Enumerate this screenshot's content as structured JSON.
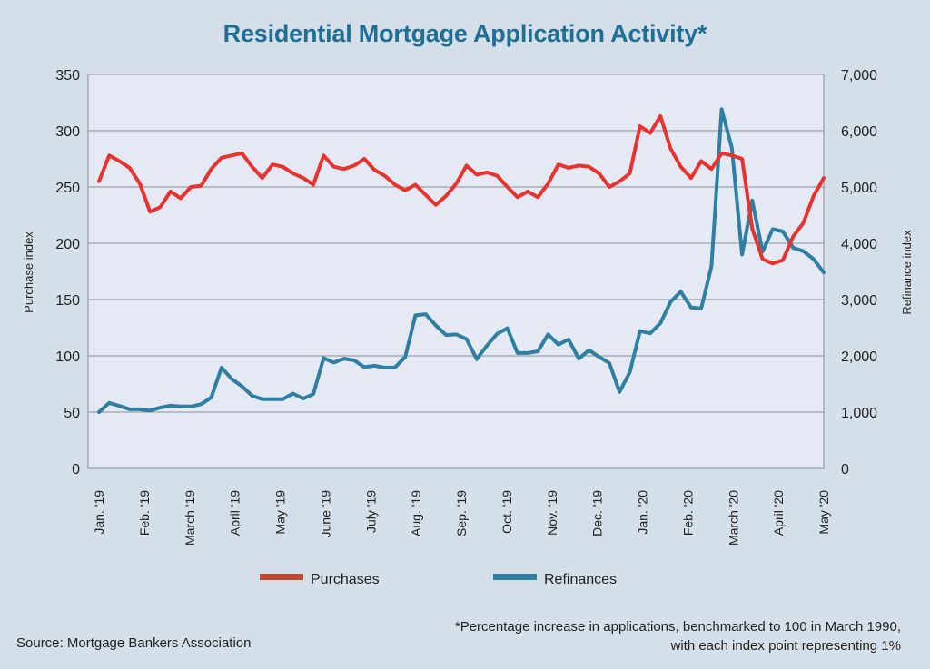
{
  "title": "Residential Mortgage Application Activity*",
  "source": "Source: Mortgage Bankers Association",
  "footnote": {
    "line1": "*Percentage increase in applications, benchmarked to 100 in March 1990,",
    "line2": "with each index point representing 1%"
  },
  "colors": {
    "background": "#d5dfe9",
    "plot": "#e4e9f4",
    "purchases": "#e8322e",
    "refinances": "#2e7fa2",
    "title": "#1f6f94",
    "grid": "#8a8f96"
  },
  "chart_data": {
    "type": "line",
    "ylabel_left": "Purchase index",
    "ylabel_right": "Refinance index",
    "ylim_left": [
      0,
      350
    ],
    "ylim_right": [
      0,
      7000
    ],
    "yticks_left": [
      "0",
      "50",
      "100",
      "150",
      "200",
      "250",
      "300",
      "350"
    ],
    "yticks_right": [
      "0",
      "1,000",
      "2,000",
      "3,000",
      "4,000",
      "5,000",
      "6,000",
      "7,000"
    ],
    "xticks": [
      "Jan. '19",
      "Feb. '19",
      "March '19",
      "April '19",
      "May '19",
      "June '19",
      "July '19",
      "Aug. '19",
      "Sep. '19",
      "Oct. '19",
      "Nov. '19",
      "Dec. '19",
      "Jan. '20",
      "Feb. '20",
      "March '20",
      "April '20",
      "May '20"
    ],
    "grid": true,
    "legend_position": "bottom",
    "series": [
      {
        "name": "Purchases",
        "axis": "left",
        "values": [
          255,
          278,
          273,
          267,
          253,
          228,
          232,
          246,
          240,
          250,
          251,
          266,
          276,
          278,
          280,
          268,
          258,
          270,
          268,
          262,
          258,
          252,
          278,
          268,
          266,
          269,
          275,
          265,
          260,
          252,
          247,
          252,
          243,
          234,
          242,
          253,
          269,
          261,
          263,
          260,
          250,
          241,
          246,
          241,
          253,
          270,
          267,
          269,
          268,
          262,
          250,
          255,
          262,
          304,
          298,
          313,
          284,
          268,
          258,
          273,
          266,
          280,
          278,
          275,
          213,
          186,
          182,
          185,
          206,
          218,
          242,
          258
        ]
      },
      {
        "name": "Refinances",
        "axis": "right",
        "values": [
          1000,
          1165,
          1110,
          1050,
          1050,
          1025,
          1080,
          1115,
          1100,
          1100,
          1140,
          1260,
          1790,
          1590,
          1460,
          1290,
          1230,
          1230,
          1230,
          1330,
          1240,
          1320,
          1960,
          1880,
          1950,
          1920,
          1800,
          1825,
          1790,
          1795,
          1980,
          2720,
          2740,
          2540,
          2370,
          2380,
          2300,
          1940,
          2180,
          2390,
          2490,
          2050,
          2050,
          2080,
          2380,
          2200,
          2290,
          1950,
          2100,
          1980,
          1870,
          1360,
          1710,
          2440,
          2400,
          2580,
          2960,
          3140,
          2860,
          2840,
          3590,
          6380,
          5700,
          3800,
          4760,
          3850,
          4250,
          4210,
          3920,
          3860,
          3720,
          3480
        ]
      }
    ]
  }
}
